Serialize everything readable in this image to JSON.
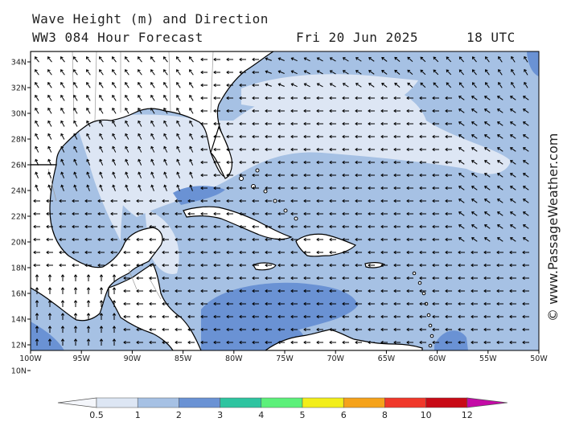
{
  "header": {
    "title_line1": "Wave Height (m) and Direction",
    "title_line2": "WW3 084 Hour Forecast",
    "date": "Fri 20 Jun 2025",
    "time": "18 UTC"
  },
  "watermark": "© www.PassageWeather.com",
  "axes": {
    "lat_labels": [
      "34N",
      "32N",
      "30N",
      "28N",
      "26N",
      "24N",
      "22N",
      "20N",
      "18N",
      "16N",
      "14N",
      "12N",
      "10N"
    ],
    "lon_labels": [
      "100W",
      "95W",
      "90W",
      "85W",
      "80W",
      "75W",
      "70W",
      "65W",
      "60W",
      "55W",
      "50W"
    ]
  },
  "legend": {
    "colors": [
      "#f4f6fb",
      "#dde6f4",
      "#a6c1e4",
      "#6a92d4",
      "#2ec4a0",
      "#5cf07a",
      "#f2ee1a",
      "#f5a21a",
      "#f0382a",
      "#c80a16",
      "#c40aa6"
    ],
    "labels": [
      "0.5",
      "1",
      "2",
      "3",
      "4",
      "5",
      "6",
      "8",
      "10",
      "12"
    ]
  }
}
